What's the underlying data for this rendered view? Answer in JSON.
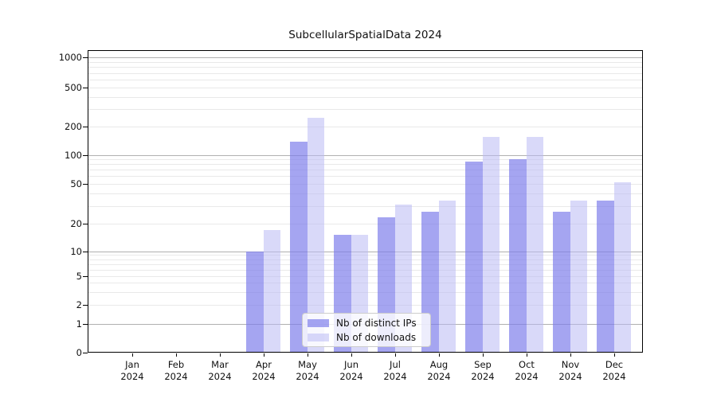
{
  "chart_data": {
    "type": "bar",
    "title": "SubcellularSpatialData 2024",
    "x_tick_labels": [
      [
        "Jan",
        "2024"
      ],
      [
        "Feb",
        "2024"
      ],
      [
        "Mar",
        "2024"
      ],
      [
        "Apr",
        "2024"
      ],
      [
        "May",
        "2024"
      ],
      [
        "Jun",
        "2024"
      ],
      [
        "Jul",
        "2024"
      ],
      [
        "Aug",
        "2024"
      ],
      [
        "Sep",
        "2024"
      ],
      [
        "Oct",
        "2024"
      ],
      [
        "Nov",
        "2024"
      ],
      [
        "Dec",
        "2024"
      ]
    ],
    "months_keys": [
      "jan",
      "feb",
      "mar",
      "apr",
      "may",
      "jun",
      "jul",
      "aug",
      "sep",
      "oct",
      "nov",
      "dec"
    ],
    "series": [
      {
        "name": "Nb of distinct IPs",
        "color": "rgba(122,122,235,0.68)",
        "values": [
          0,
          0,
          0,
          10,
          140,
          15,
          23,
          26,
          85,
          90,
          26,
          34
        ]
      },
      {
        "name": "Nb of downloads",
        "color": "rgba(186,186,244,0.55)",
        "values": [
          0,
          0,
          0,
          17,
          245,
          15,
          31,
          34,
          155,
          157,
          34,
          52
        ]
      }
    ],
    "yaxis": {
      "scale": "log-like (asinh/symlog)",
      "tick_values": [
        0,
        1,
        2,
        5,
        10,
        20,
        50,
        100,
        200,
        500,
        1000
      ],
      "tick_labels": [
        "0",
        "1",
        "2",
        "5",
        "10",
        "20",
        "50",
        "100",
        "200",
        "500",
        "1000"
      ],
      "major_grid_values": [
        1,
        10,
        100,
        1000
      ],
      "minor_grid_values": [
        2,
        3,
        4,
        5,
        6,
        7,
        8,
        9,
        20,
        30,
        40,
        50,
        60,
        70,
        80,
        90,
        200,
        300,
        400,
        500,
        600,
        700,
        800,
        900
      ],
      "ylim": [
        0,
        1200
      ]
    },
    "grid": "horizontal, major + minor",
    "legend_position": "lower center",
    "colors": {
      "bar_distinct_ips": "rgba(122,122,235,0.68)",
      "bar_downloads": "rgba(186,186,244,0.55)",
      "grid_major": "#b0b0b0",
      "grid_minor": "#e9e9e9",
      "axis": "#000000",
      "text": "#111111",
      "legend_bg": "rgba(255,255,255,0.8)",
      "legend_border": "#cccccc"
    }
  }
}
